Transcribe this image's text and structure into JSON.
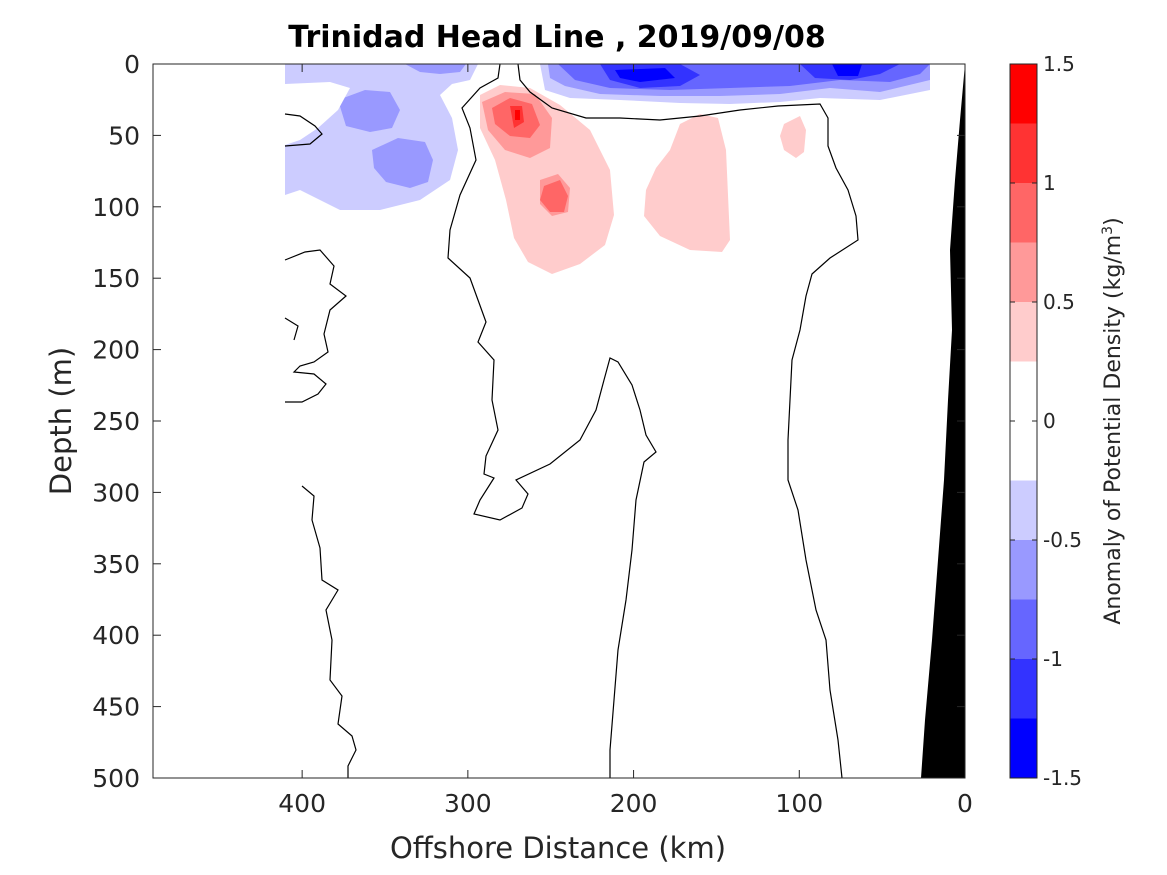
{
  "chart_data": {
    "type": "heatmap",
    "subtype": "filled-contour section",
    "title": "Trinidad Head Line , 2019/09/08",
    "xlabel": "Offshore Distance (km)",
    "ylabel": "Depth (m)",
    "xlim": [
      490,
      0
    ],
    "ylim": [
      0,
      500
    ],
    "x_reversed": true,
    "y_reversed": true,
    "xticks": [
      400,
      300,
      200,
      100,
      0
    ],
    "yticks": [
      0,
      50,
      100,
      150,
      200,
      250,
      300,
      350,
      400,
      450,
      500
    ],
    "colorbar": {
      "label": "Anomaly of Potential Density (kg/m",
      "label_sup": "3",
      "label_end": ")",
      "range": [
        -1.5,
        1.5
      ],
      "ticks": [
        1.5,
        1,
        0.5,
        0,
        -0.5,
        -1,
        -1.5
      ],
      "tick_labels": [
        "1.5",
        "1",
        "0.5",
        "0",
        "-0.5",
        "-1",
        "-1.5"
      ],
      "levels": [
        {
          "min": 1.25,
          "max": 1.5,
          "color": "#ff0000"
        },
        {
          "min": 1.0,
          "max": 1.25,
          "color": "#ff3333"
        },
        {
          "min": 0.75,
          "max": 1.0,
          "color": "#ff6666"
        },
        {
          "min": 0.5,
          "max": 0.75,
          "color": "#ff9999"
        },
        {
          "min": 0.25,
          "max": 0.5,
          "color": "#ffcccc"
        },
        {
          "min": 0.0,
          "max": 0.25,
          "color": "#ffffff"
        },
        {
          "min": -0.25,
          "max": 0.0,
          "color": "#ffffff"
        },
        {
          "min": -0.5,
          "max": -0.25,
          "color": "#ccccff"
        },
        {
          "min": -0.75,
          "max": -0.5,
          "color": "#9999ff"
        },
        {
          "min": -1.0,
          "max": -0.75,
          "color": "#6666ff"
        },
        {
          "min": -1.25,
          "max": -1.0,
          "color": "#3333ff"
        },
        {
          "min": -1.5,
          "max": -1.25,
          "color": "#0000ff"
        }
      ]
    },
    "features": [
      {
        "name": "red-core",
        "anomaly": 1.25,
        "center_km": 270,
        "center_depth_m": 36
      },
      {
        "name": "red-secondary",
        "anomaly": 0.75,
        "center_km": 248,
        "center_depth_m": 92
      },
      {
        "name": "pink-nearshore",
        "anomaly": 0.5,
        "center_km": 160,
        "center_depth_m": 95
      },
      {
        "name": "blue-surface-core",
        "anomaly": -1.25,
        "center_km": 190,
        "center_depth_m": 10
      },
      {
        "name": "blue-surface-nearshore",
        "anomaly": -1.25,
        "center_km": 70,
        "center_depth_m": 5
      },
      {
        "name": "blue-offshore",
        "anomaly": -0.75,
        "center_km": 340,
        "center_depth_m": 65
      }
    ],
    "bathymetry_color": "#000000"
  }
}
